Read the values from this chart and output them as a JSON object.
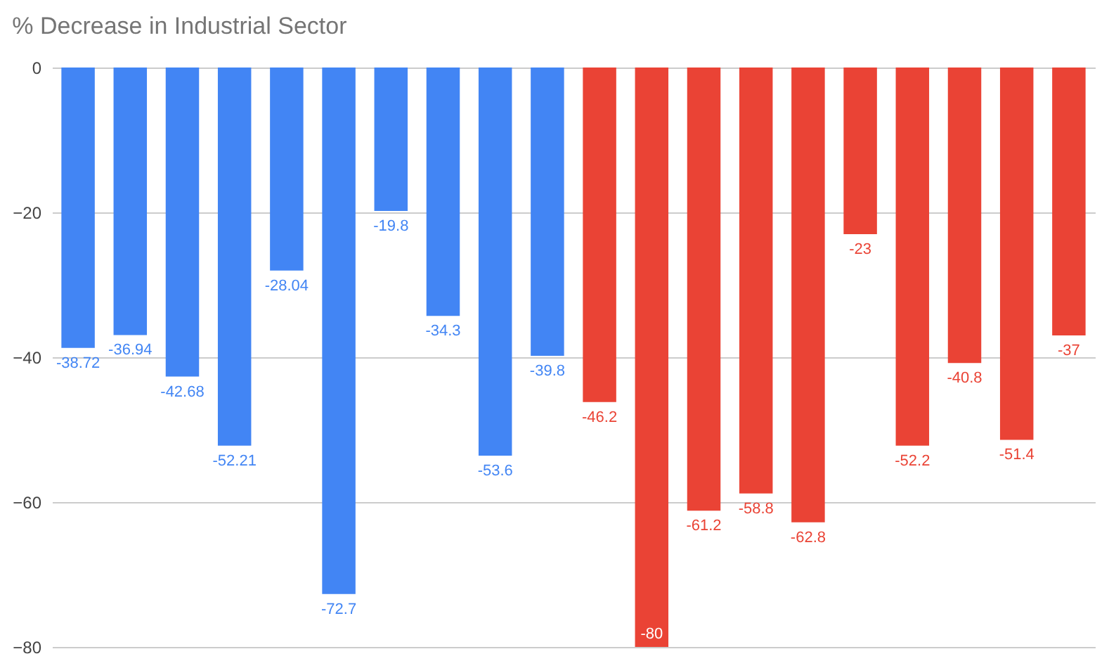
{
  "chart_data": {
    "type": "bar",
    "title": "% Decrease in Industrial Sector",
    "categories": [
      null,
      null,
      null,
      null,
      null,
      null,
      null,
      null,
      null,
      null,
      null,
      null,
      null,
      null,
      null,
      null,
      null,
      null,
      null,
      null
    ],
    "values": [
      -38.72,
      -36.94,
      -42.68,
      -52.21,
      -28.04,
      -72.7,
      -19.8,
      -34.3,
      -53.6,
      -39.8,
      -46.2,
      -80,
      -61.2,
      -58.8,
      -62.8,
      -23,
      -52.2,
      -40.8,
      -51.4,
      -37
    ],
    "colors": [
      "#4285f4",
      "#4285f4",
      "#4285f4",
      "#4285f4",
      "#4285f4",
      "#4285f4",
      "#4285f4",
      "#4285f4",
      "#4285f4",
      "#4285f4",
      "#ea4335",
      "#ea4335",
      "#ea4335",
      "#ea4335",
      "#ea4335",
      "#ea4335",
      "#ea4335",
      "#ea4335",
      "#ea4335",
      "#ea4335"
    ],
    "ylim": [
      -80,
      0
    ],
    "yticks": [
      0,
      -20,
      -40,
      -60,
      -80
    ],
    "grid": "y",
    "data_labels": true
  }
}
